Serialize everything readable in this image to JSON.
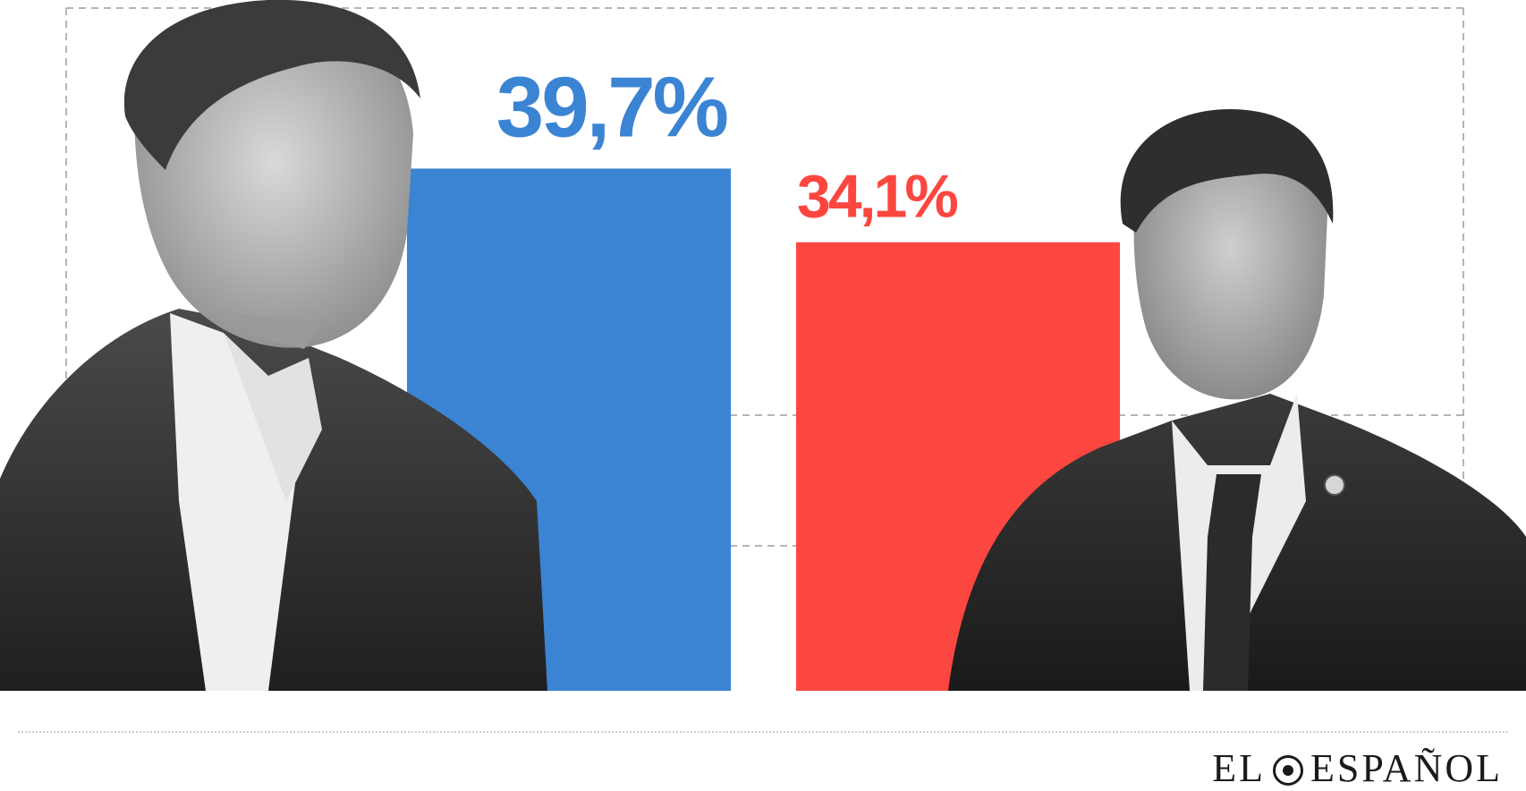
{
  "chart_data": {
    "type": "bar",
    "categories": [
      "",
      ""
    ],
    "values": [
      39.7,
      34.1
    ],
    "value_labels": [
      "39,7%",
      "34,1%"
    ],
    "colors": [
      "#3b84d3",
      "#fb4740"
    ],
    "title": "",
    "xlabel": "",
    "ylabel": "",
    "ylim": [
      0,
      50
    ],
    "grid": "dashed",
    "legend": "none"
  },
  "footer": {
    "brand_left": "EL",
    "brand_right": "ESPAÑOL",
    "brand_emblem": "crest-icon"
  }
}
